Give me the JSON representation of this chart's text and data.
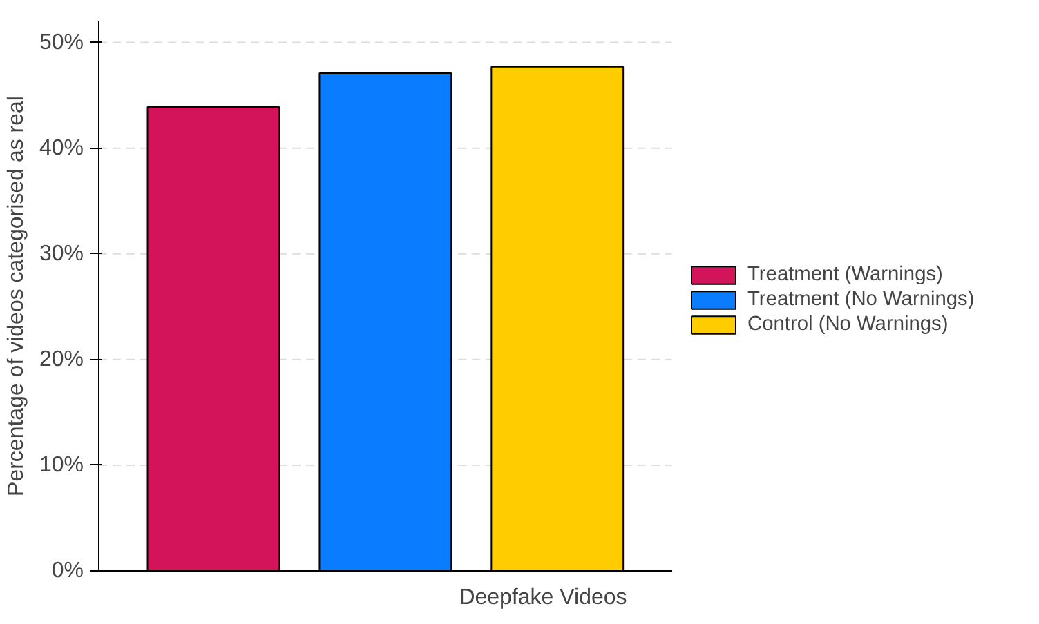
{
  "chart_data": {
    "type": "bar",
    "ylabel": "Percentage of videos categorised as real",
    "xlabel": "Deepfake Videos",
    "categories": [
      null
    ],
    "series": [
      {
        "name": "Treatment (Warnings)",
        "color": "#d4145a",
        "values": [
          43.9
        ]
      },
      {
        "name": "Treatment (No Warnings)",
        "color": "#0a7cff",
        "values": [
          47.1
        ]
      },
      {
        "name": "Control (No Warnings)",
        "color": "#ffcc00",
        "values": [
          47.7
        ]
      }
    ],
    "ylim": [
      0,
      52
    ],
    "yticks": [
      {
        "value": 0,
        "label": "0%"
      },
      {
        "value": 10,
        "label": "10%"
      },
      {
        "value": 20,
        "label": "20%"
      },
      {
        "value": 30,
        "label": "30%"
      },
      {
        "value": 40,
        "label": "40%"
      },
      {
        "value": 50,
        "label": "50%"
      }
    ],
    "grid": "y",
    "legend": "right"
  }
}
